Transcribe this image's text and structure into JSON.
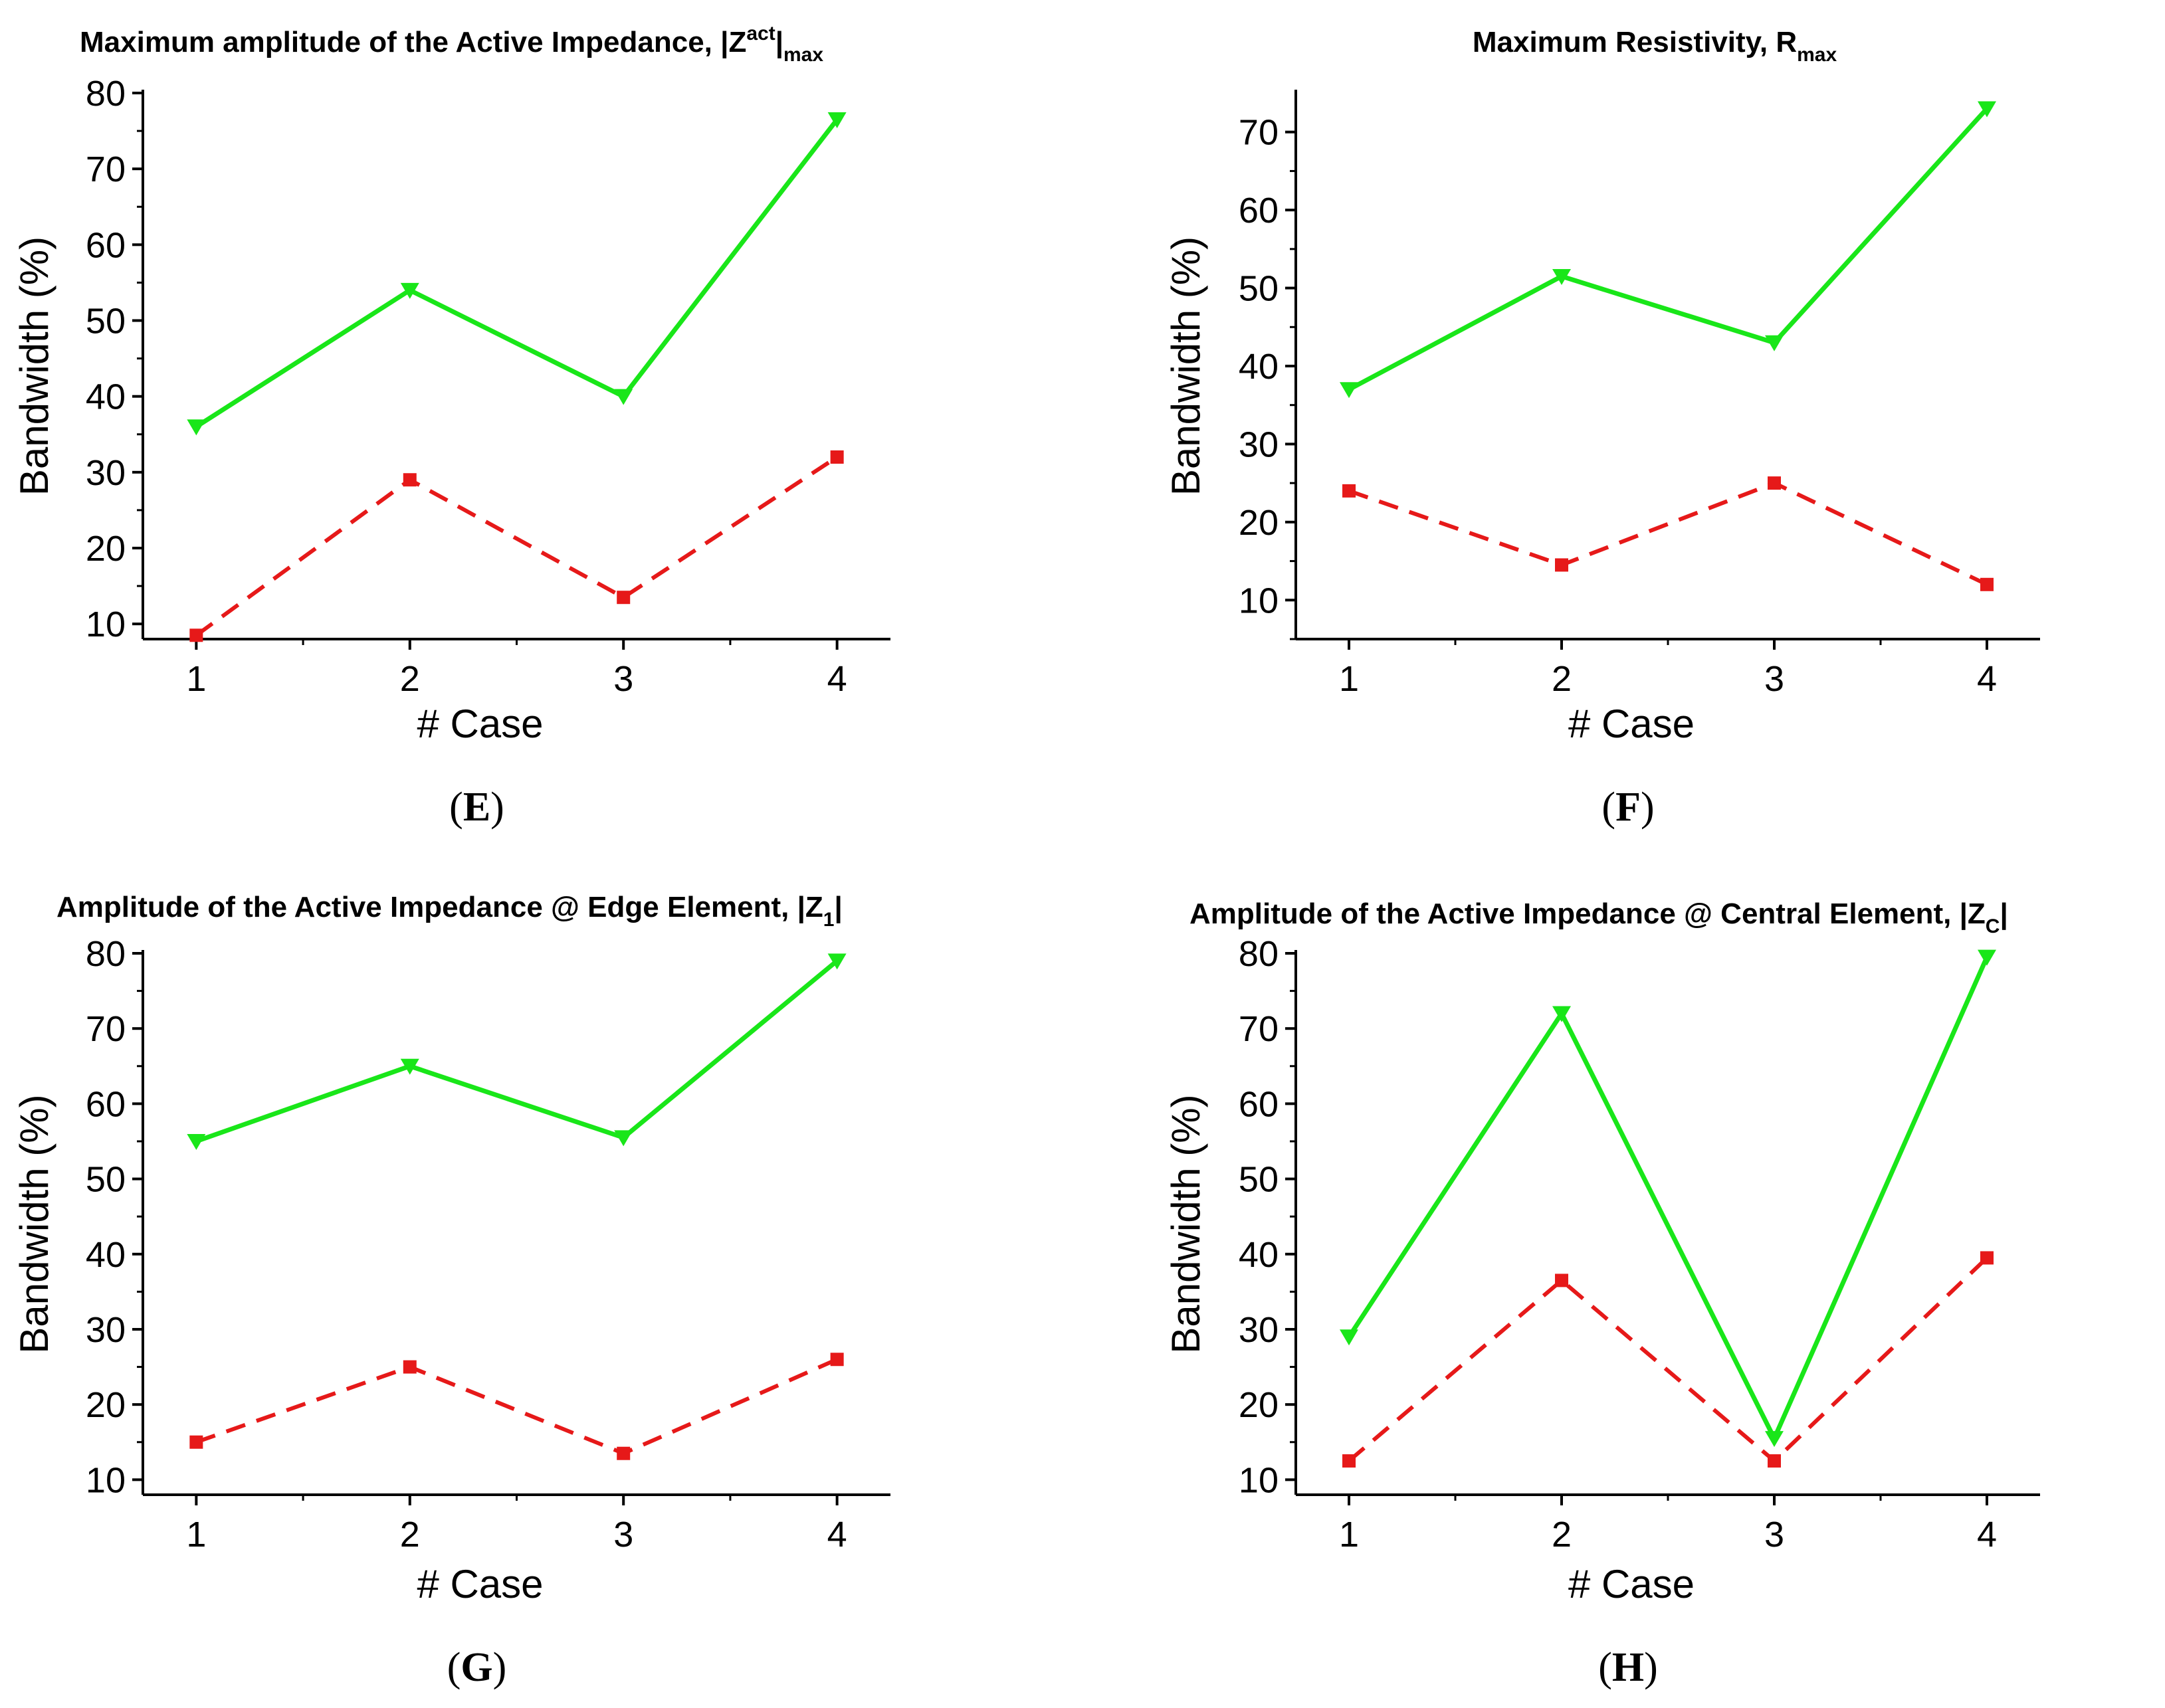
{
  "figure": {
    "colors": {
      "green": "#19e619",
      "red": "#e61919",
      "axis": "#000000"
    },
    "marker_shapes": {
      "green": "triangle-down",
      "red": "square"
    }
  },
  "chart_data": [
    {
      "panel_label": "E",
      "type": "line",
      "title": "Maximum amplitude of the Active Impedance, |Z",
      "title_sup": "act",
      "title_post": "|",
      "title_sub": "max",
      "xlabel": "# Case",
      "ylabel": "Bandwidth (%)",
      "x": [
        1,
        2,
        3,
        4
      ],
      "xticks": [
        "1",
        "2",
        "3",
        "4"
      ],
      "xlim": [
        0.75,
        4.25
      ],
      "ylim": [
        8,
        80
      ],
      "yticks": [
        10,
        20,
        30,
        40,
        50,
        60,
        70,
        80
      ],
      "series": [
        {
          "name": "green",
          "style": "solid",
          "marker": "triangle-down",
          "values": [
            36,
            54,
            40,
            76.5
          ]
        },
        {
          "name": "red",
          "style": "dashed",
          "marker": "square",
          "values": [
            8.5,
            29,
            13.5,
            32
          ]
        }
      ]
    },
    {
      "panel_label": "F",
      "type": "line",
      "title": "Maximum Resistivity, R",
      "title_sup": "",
      "title_post": "",
      "title_sub": "max",
      "xlabel": "# Case",
      "ylabel": "Bandwidth (%)",
      "x": [
        1,
        2,
        3,
        4
      ],
      "xticks": [
        "1",
        "2",
        "3",
        "4"
      ],
      "xlim": [
        0.75,
        4.25
      ],
      "ylim": [
        5,
        75
      ],
      "yticks": [
        10,
        20,
        30,
        40,
        50,
        60,
        70
      ],
      "series": [
        {
          "name": "green",
          "style": "solid",
          "marker": "triangle-down",
          "values": [
            37,
            51.5,
            43,
            73
          ]
        },
        {
          "name": "red",
          "style": "dashed",
          "marker": "square",
          "values": [
            24,
            14.5,
            25,
            12
          ]
        }
      ]
    },
    {
      "panel_label": "G",
      "type": "line",
      "title": "Amplitude of the Active Impedance @ Edge Element, |Z",
      "title_sup": "",
      "title_post": "|",
      "title_sub": "1",
      "xlabel": "# Case",
      "ylabel": "Bandwidth (%)",
      "x": [
        1,
        2,
        3,
        4
      ],
      "xticks": [
        "1",
        "2",
        "3",
        "4"
      ],
      "xlim": [
        0.75,
        4.25
      ],
      "ylim": [
        8,
        80
      ],
      "yticks": [
        10,
        20,
        30,
        40,
        50,
        60,
        70,
        80
      ],
      "series": [
        {
          "name": "green",
          "style": "solid",
          "marker": "triangle-down",
          "values": [
            55,
            65,
            55.5,
            79
          ]
        },
        {
          "name": "red",
          "style": "dashed",
          "marker": "square",
          "values": [
            15,
            25,
            13.5,
            26
          ]
        }
      ]
    },
    {
      "panel_label": "H",
      "type": "line",
      "title": "Amplitude of the Active Impedance @ Central Element, |Z",
      "title_sup": "",
      "title_post": "|",
      "title_sub": "C",
      "xlabel": "# Case",
      "ylabel": "Bandwidth (%)",
      "x": [
        1,
        2,
        3,
        4
      ],
      "xticks": [
        "1",
        "2",
        "3",
        "4"
      ],
      "xlim": [
        0.75,
        4.25
      ],
      "ylim": [
        8,
        80
      ],
      "yticks": [
        10,
        20,
        30,
        40,
        50,
        60,
        70,
        80
      ],
      "series": [
        {
          "name": "green",
          "style": "solid",
          "marker": "triangle-down",
          "values": [
            29,
            72,
            15.5,
            79.5
          ]
        },
        {
          "name": "red",
          "style": "dashed",
          "marker": "square",
          "values": [
            12.5,
            36.5,
            12.5,
            39.5
          ]
        }
      ]
    }
  ]
}
